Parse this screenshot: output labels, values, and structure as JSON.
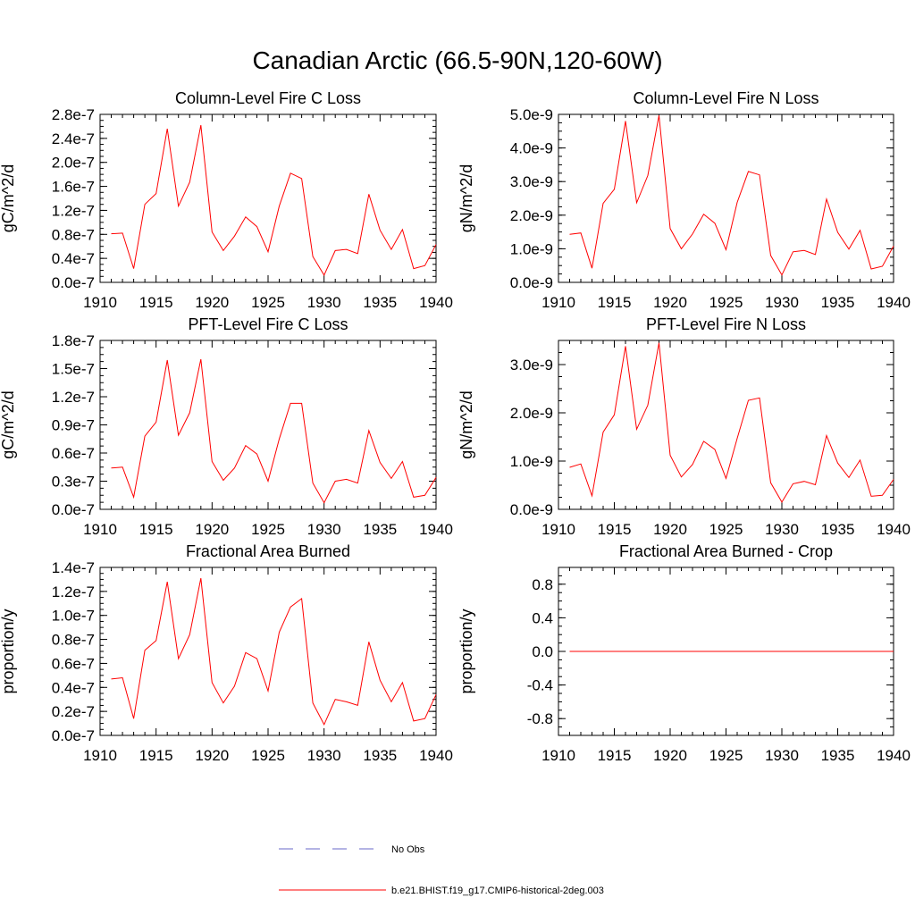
{
  "title": "Canadian Arctic (66.5-90N,120-60W)",
  "colors": {
    "series": "#ff0000",
    "obs": "#6a6ac8",
    "axis": "#000000"
  },
  "legend": [
    {
      "label": "No Obs",
      "style": "dashed",
      "color": "#6a6ac8"
    },
    {
      "label": "b.e21.BHIST.f19_g17.CMIP6-historical-2deg.003",
      "style": "solid",
      "color": "#ff0000"
    }
  ],
  "chart_data": [
    {
      "type": "line",
      "title": "Column-Level Fire C Loss",
      "xlabel": "",
      "ylabel": "gC/m^2/d",
      "xlim": [
        1910,
        1940
      ],
      "ylim": [
        0,
        2.8e-07
      ],
      "xticks": [
        1910,
        1915,
        1920,
        1925,
        1930,
        1935,
        1940
      ],
      "yticks": [
        0,
        4e-08,
        8e-08,
        1.2e-07,
        1.6e-07,
        2e-07,
        2.4e-07,
        2.8e-07
      ],
      "ytick_labels": [
        "0.0e-7",
        "0.4e-7",
        "0.8e-7",
        "1.2e-7",
        "1.6e-7",
        "2.0e-7",
        "2.4e-7",
        "2.8e-7"
      ],
      "x": [
        1911,
        1912,
        1913,
        1914,
        1915,
        1916,
        1917,
        1918,
        1919,
        1920,
        1921,
        1922,
        1923,
        1924,
        1925,
        1926,
        1927,
        1928,
        1929,
        1930,
        1931,
        1932,
        1933,
        1934,
        1935,
        1936,
        1937,
        1938,
        1939,
        1940
      ],
      "series": [
        {
          "values": [
            8.1e-08,
            8.2e-08,
            2.3e-08,
            1.3e-07,
            1.48e-07,
            2.56e-07,
            1.27e-07,
            1.67e-07,
            2.62e-07,
            8.4e-08,
            5.3e-08,
            7.7e-08,
            1.09e-07,
            9.3e-08,
            5.1e-08,
            1.27e-07,
            1.82e-07,
            1.73e-07,
            4.3e-08,
            1.2e-08,
            5.3e-08,
            5.5e-08,
            4.8e-08,
            1.47e-07,
            8.7e-08,
            5.5e-08,
            8.8e-08,
            2.3e-08,
            2.8e-08,
            6.3e-08
          ]
        }
      ]
    },
    {
      "type": "line",
      "title": "Column-Level Fire N Loss",
      "xlabel": "",
      "ylabel": "gN/m^2/d",
      "xlim": [
        1910,
        1940
      ],
      "ylim": [
        0,
        5e-09
      ],
      "xticks": [
        1910,
        1915,
        1920,
        1925,
        1930,
        1935,
        1940
      ],
      "yticks": [
        0,
        1e-09,
        2e-09,
        3e-09,
        4e-09,
        5e-09
      ],
      "ytick_labels": [
        "0.0e-9",
        "1.0e-9",
        "2.0e-9",
        "3.0e-9",
        "4.0e-9",
        "5.0e-9"
      ],
      "x": [
        1911,
        1912,
        1913,
        1914,
        1915,
        1916,
        1917,
        1918,
        1919,
        1920,
        1921,
        1922,
        1923,
        1924,
        1925,
        1926,
        1927,
        1928,
        1929,
        1930,
        1931,
        1932,
        1933,
        1934,
        1935,
        1936,
        1937,
        1938,
        1939,
        1940
      ],
      "series": [
        {
          "values": [
            1.43e-09,
            1.47e-09,
            4.2e-10,
            2.35e-09,
            2.77e-09,
            4.8e-09,
            2.37e-09,
            3.18e-09,
            4.97e-09,
            1.6e-09,
            1e-09,
            1.44e-09,
            2.03e-09,
            1.76e-09,
            9.7e-10,
            2.38e-09,
            3.3e-09,
            3.2e-09,
            8e-10,
            2.2e-10,
            9.1e-10,
            9.5e-10,
            8.3e-10,
            2.48e-09,
            1.49e-09,
            9.9e-10,
            1.55e-09,
            4e-10,
            4.8e-10,
            1.08e-09
          ]
        }
      ]
    },
    {
      "type": "line",
      "title": "PFT-Level Fire C Loss",
      "xlabel": "",
      "ylabel": "gC/m^2/d",
      "xlim": [
        1910,
        1940
      ],
      "ylim": [
        0,
        1.8e-07
      ],
      "xticks": [
        1910,
        1915,
        1920,
        1925,
        1930,
        1935,
        1940
      ],
      "yticks": [
        0,
        3e-08,
        6e-08,
        9e-08,
        1.2e-07,
        1.5e-07,
        1.8e-07
      ],
      "ytick_labels": [
        "0.0e-7",
        "0.3e-7",
        "0.6e-7",
        "0.9e-7",
        "1.2e-7",
        "1.5e-7",
        "1.8e-7"
      ],
      "x": [
        1911,
        1912,
        1913,
        1914,
        1915,
        1916,
        1917,
        1918,
        1919,
        1920,
        1921,
        1922,
        1923,
        1924,
        1925,
        1926,
        1927,
        1928,
        1929,
        1930,
        1931,
        1932,
        1933,
        1934,
        1935,
        1936,
        1937,
        1938,
        1939,
        1940
      ],
      "series": [
        {
          "values": [
            4.4e-08,
            4.5e-08,
            1.3e-08,
            7.8e-08,
            9.3e-08,
            1.59e-07,
            7.9e-08,
            1.03e-07,
            1.6e-07,
            5.1e-08,
            3.1e-08,
            4.4e-08,
            6.8e-08,
            5.9e-08,
            3e-08,
            7.5e-08,
            1.13e-07,
            1.13e-07,
            2.8e-08,
            7e-09,
            3e-08,
            3.2e-08,
            2.8e-08,
            8.4e-08,
            5e-08,
            3.3e-08,
            5.1e-08,
            1.3e-08,
            1.5e-08,
            3.4e-08
          ]
        }
      ]
    },
    {
      "type": "line",
      "title": "PFT-Level Fire N Loss",
      "xlabel": "",
      "ylabel": "gN/m^2/d",
      "xlim": [
        1910,
        1940
      ],
      "ylim": [
        0,
        3.5e-09
      ],
      "xticks": [
        1910,
        1915,
        1920,
        1925,
        1930,
        1935,
        1940
      ],
      "yticks": [
        0,
        1e-09,
        2e-09,
        3e-09
      ],
      "ytick_labels": [
        "0.0e-9",
        "1.0e-9",
        "2.0e-9",
        "3.0e-9"
      ],
      "x": [
        1911,
        1912,
        1913,
        1914,
        1915,
        1916,
        1917,
        1918,
        1919,
        1920,
        1921,
        1922,
        1923,
        1924,
        1925,
        1926,
        1927,
        1928,
        1929,
        1930,
        1931,
        1932,
        1933,
        1934,
        1935,
        1936,
        1937,
        1938,
        1939,
        1940
      ],
      "series": [
        {
          "values": [
            8.7e-10,
            9.4e-10,
            2.8e-10,
            1.6e-09,
            1.96e-09,
            3.38e-09,
            1.66e-09,
            2.16e-09,
            3.45e-09,
            1.12e-09,
            6.7e-10,
            9.3e-10,
            1.41e-09,
            1.24e-09,
            6.4e-10,
            1.47e-09,
            2.26e-09,
            2.31e-09,
            5.5e-10,
            1.5e-10,
            5.3e-10,
            5.8e-10,
            5.1e-10,
            1.53e-09,
            9.6e-10,
            6.6e-10,
            1.02e-09,
            2.7e-10,
            2.9e-10,
            6.2e-10
          ]
        }
      ]
    },
    {
      "type": "line",
      "title": "Fractional Area Burned",
      "xlabel": "",
      "ylabel": "proportion/y",
      "xlim": [
        1910,
        1940
      ],
      "ylim": [
        0,
        1.4e-07
      ],
      "xticks": [
        1910,
        1915,
        1920,
        1925,
        1930,
        1935,
        1940
      ],
      "yticks": [
        0,
        2e-08,
        4e-08,
        6e-08,
        8e-08,
        1e-07,
        1.2e-07,
        1.4e-07
      ],
      "ytick_labels": [
        "0.0e-7",
        "0.2e-7",
        "0.4e-7",
        "0.6e-7",
        "0.8e-7",
        "1.0e-7",
        "1.2e-7",
        "1.4e-7"
      ],
      "x": [
        1911,
        1912,
        1913,
        1914,
        1915,
        1916,
        1917,
        1918,
        1919,
        1920,
        1921,
        1922,
        1923,
        1924,
        1925,
        1926,
        1927,
        1928,
        1929,
        1930,
        1931,
        1932,
        1933,
        1934,
        1935,
        1936,
        1937,
        1938,
        1939,
        1940
      ],
      "series": [
        {
          "values": [
            4.7e-08,
            4.8e-08,
            1.4e-08,
            7.1e-08,
            7.9e-08,
            1.28e-07,
            6.4e-08,
            8.4e-08,
            1.31e-07,
            4.4e-08,
            2.7e-08,
            4.1e-08,
            6.9e-08,
            6.4e-08,
            3.7e-08,
            8.6e-08,
            1.07e-07,
            1.14e-07,
            2.7e-08,
            9e-09,
            3e-08,
            2.8e-08,
            2.5e-08,
            7.8e-08,
            4.6e-08,
            2.8e-08,
            4.4e-08,
            1.2e-08,
            1.4e-08,
            3.4e-08
          ]
        }
      ]
    },
    {
      "type": "line",
      "title": "Fractional Area Burned - Crop",
      "xlabel": "",
      "ylabel": "proportion/y",
      "xlim": [
        1910,
        1940
      ],
      "ylim": [
        -1.0,
        1.0
      ],
      "xticks": [
        1910,
        1915,
        1920,
        1925,
        1930,
        1935,
        1940
      ],
      "yticks": [
        -0.8,
        -0.4,
        0,
        0.4,
        0.8
      ],
      "ytick_labels": [
        "-0.8",
        "-0.4",
        "0.0",
        "0.4",
        "0.8"
      ],
      "x": [
        1911,
        1912,
        1913,
        1914,
        1915,
        1916,
        1917,
        1918,
        1919,
        1920,
        1921,
        1922,
        1923,
        1924,
        1925,
        1926,
        1927,
        1928,
        1929,
        1930,
        1931,
        1932,
        1933,
        1934,
        1935,
        1936,
        1937,
        1938,
        1939,
        1940
      ],
      "series": [
        {
          "values": [
            0,
            0,
            0,
            0,
            0,
            0,
            0,
            0,
            0,
            0,
            0,
            0,
            0,
            0,
            0,
            0,
            0,
            0,
            0,
            0,
            0,
            0,
            0,
            0,
            0,
            0,
            0,
            0,
            0,
            0
          ]
        }
      ]
    }
  ]
}
